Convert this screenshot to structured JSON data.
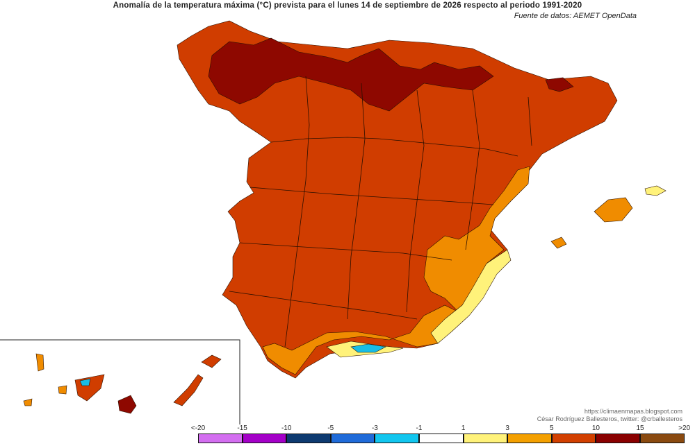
{
  "title": "Anomalía de la temperatura máxima (°C) prevista para el lunes 14 de septiembre de 2026 respecto al periodo 1991-2020",
  "source": "Fuente de datos: AEMET OpenData",
  "credits": {
    "line1": "https://climaenmapas.blogspot.com",
    "line2": "César Rodríguez Ballesteros, twitter: @crballesteros"
  },
  "legend": {
    "ticks": [
      "<-20",
      "-15",
      "-10",
      "-5",
      "-3",
      "-1",
      "1",
      "3",
      "5",
      "10",
      "15",
      ">20"
    ],
    "colors": [
      "#d36ef0",
      "#a400c8",
      "#0e3a70",
      "#1f6bd9",
      "#12c6ef",
      "#ffffff",
      "#fff27a",
      "#f4a000",
      "#d24000",
      "#8a0000",
      "#8a4a10"
    ]
  },
  "map": {
    "colors": {
      "base": "#d03d00",
      "deep": "#8e0800",
      "warm": "#f08c00",
      "light": "#fff27a",
      "cool": "#18bde6",
      "borders": "#2a1000"
    }
  }
}
